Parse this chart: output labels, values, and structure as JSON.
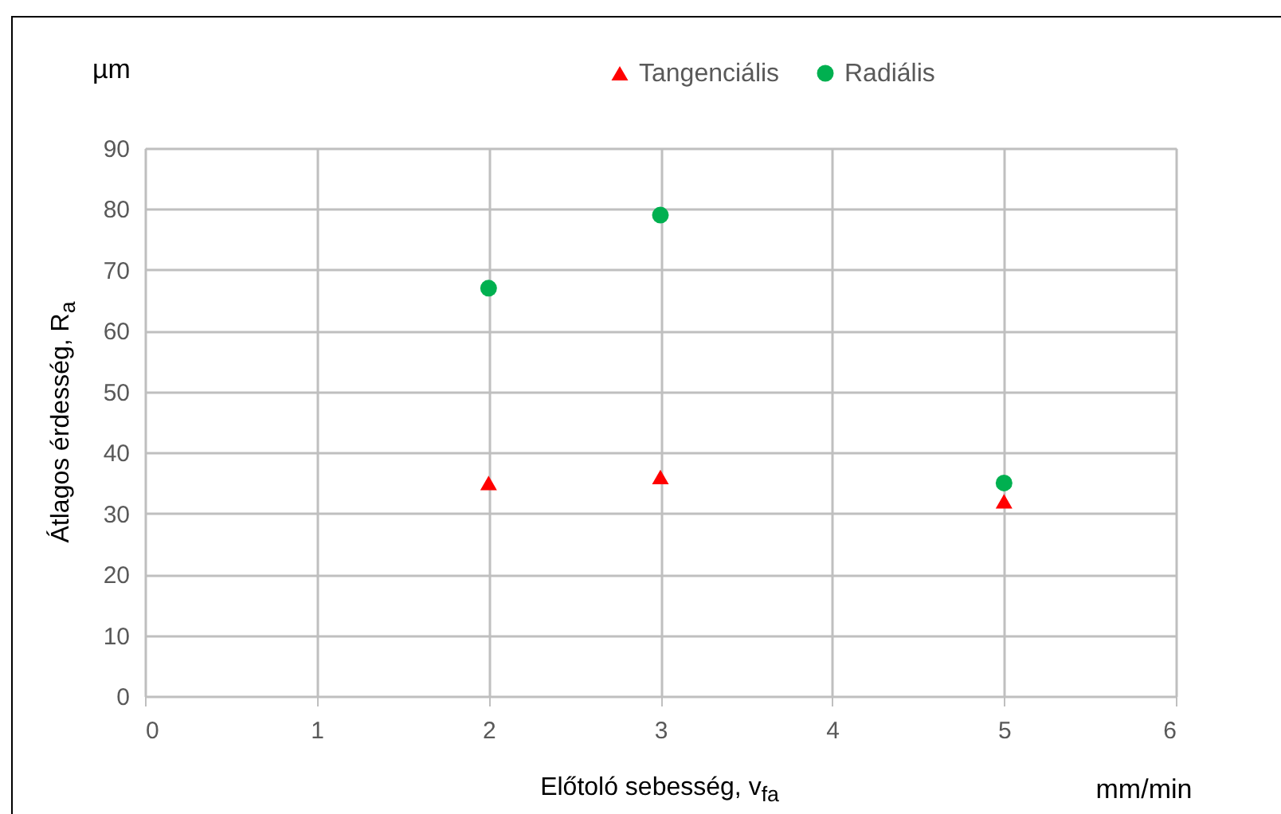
{
  "chart_data": {
    "type": "scatter",
    "xlabel": "Előtoló sebesség, v$_{fa}$",
    "ylabel": "Átlagos érdesség, R$_{a}$",
    "annotations": [
      "µm",
      "mm/min"
    ],
    "x": [
      2,
      3,
      5
    ],
    "series": [
      {
        "name": "Tangenciális",
        "color": "#ff0000",
        "marker": "triangle",
        "values": [
          35,
          36,
          32
        ]
      },
      {
        "name": "Radiális",
        "color": "#00b050",
        "marker": "circle",
        "values": [
          67,
          79,
          35
        ]
      }
    ],
    "xlim": [
      0,
      6
    ],
    "xticks": [
      0,
      1,
      2,
      3,
      4,
      5,
      6
    ],
    "ylim": [
      0,
      90
    ],
    "yticks": [
      0,
      10,
      20,
      30,
      40,
      50,
      60,
      70,
      80,
      90
    ],
    "grid": true,
    "legend": "top"
  }
}
